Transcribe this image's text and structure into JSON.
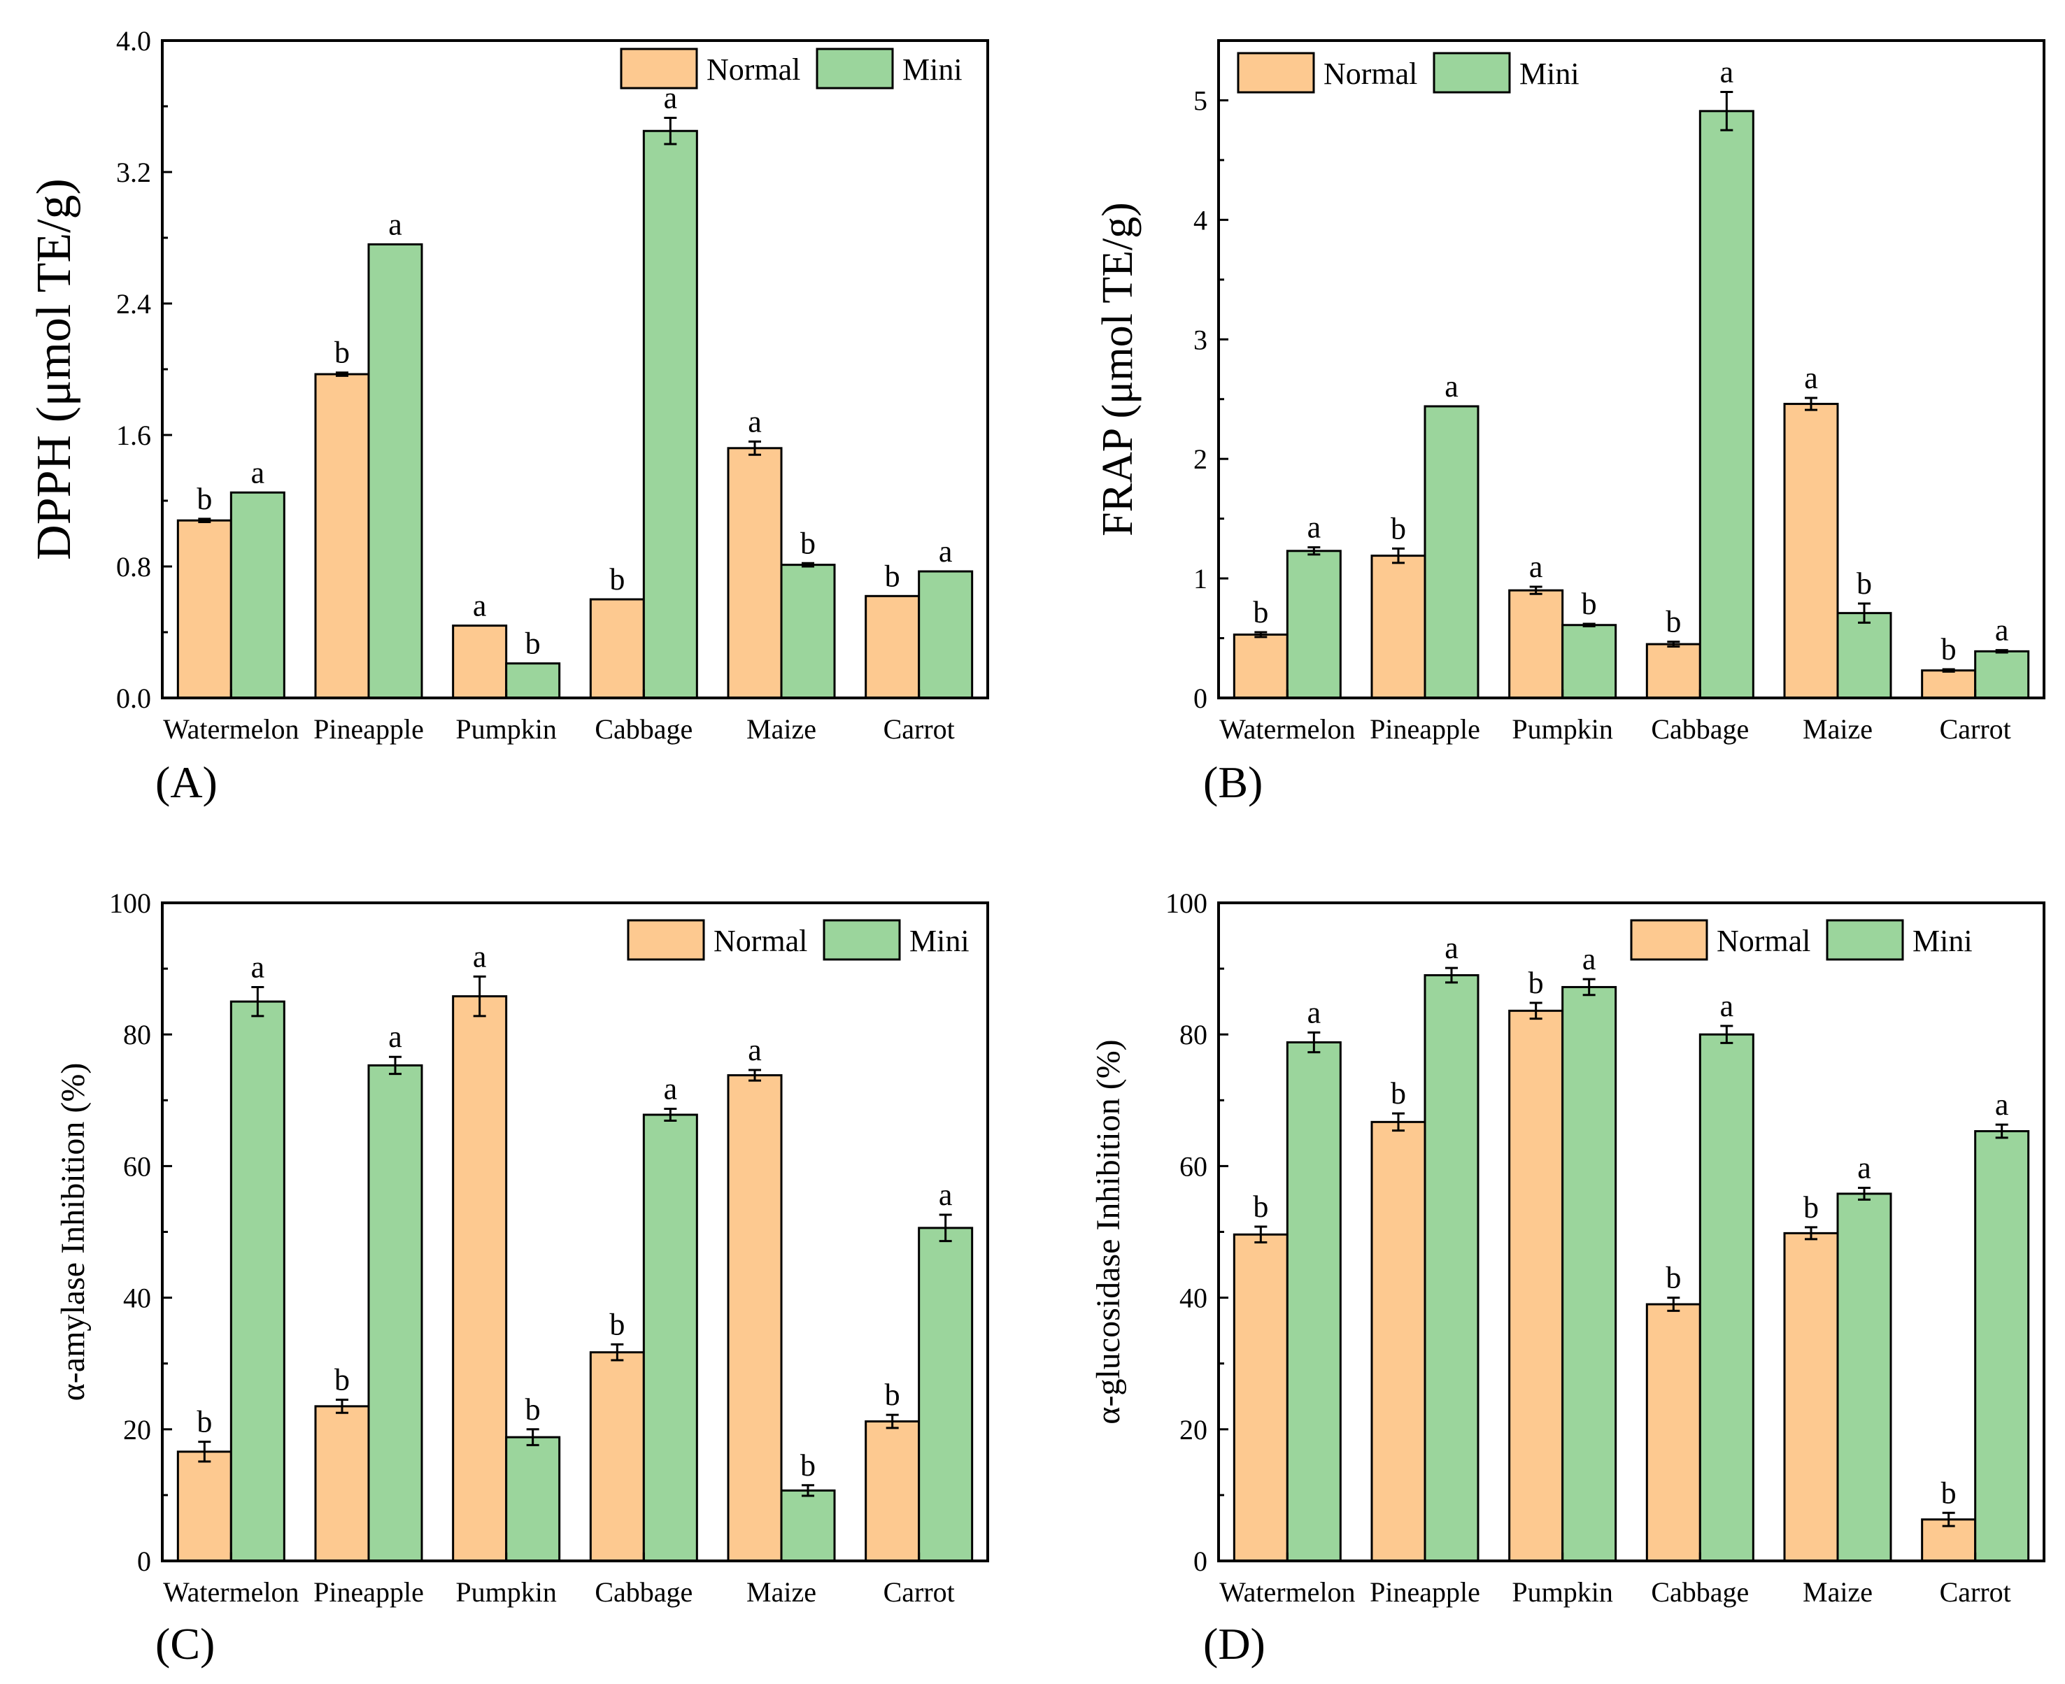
{
  "colors": {
    "normal": "#FDC990",
    "mini": "#9BD59C"
  },
  "chart_data": [
    {
      "id": "A",
      "type": "bar",
      "panel_label": "(A)",
      "title": "",
      "xlabel": "",
      "ylabel": "DPPH (μmol TE/g)",
      "ylim": [
        0,
        4.0
      ],
      "yticks": [
        0.0,
        0.8,
        1.6,
        2.4,
        3.2,
        4.0
      ],
      "ytick_labels": [
        "0.0",
        "0.8",
        "1.6",
        "2.4",
        "3.2",
        "4.0"
      ],
      "categories": [
        "Watermelon",
        "Pineapple",
        "Pumpkin",
        "Cabbage",
        "Maize",
        "Carrot"
      ],
      "legend": [
        "Normal",
        "Mini"
      ],
      "series": [
        {
          "name": "Normal",
          "values": [
            1.08,
            1.97,
            0.44,
            0.6,
            1.52,
            0.62
          ],
          "errors": [
            0.01,
            0.01,
            0.0,
            0.0,
            0.04,
            0.0
          ],
          "letters": [
            "b",
            "b",
            "a",
            "b",
            "a",
            "b"
          ]
        },
        {
          "name": "Mini",
          "values": [
            1.25,
            2.76,
            0.21,
            3.45,
            0.81,
            0.77
          ],
          "errors": [
            0.0,
            0.0,
            0.0,
            0.08,
            0.01,
            0.0
          ],
          "letters": [
            "a",
            "a",
            "b",
            "a",
            "b",
            "a"
          ]
        }
      ]
    },
    {
      "id": "B",
      "type": "bar",
      "panel_label": "(B)",
      "title": "",
      "xlabel": "",
      "ylabel": "FRAP (μmol TE/g)",
      "ylim": [
        0,
        5.5
      ],
      "yticks": [
        0,
        1,
        2,
        3,
        4,
        5
      ],
      "ytick_labels": [
        "0",
        "1",
        "2",
        "3",
        "4",
        "5"
      ],
      "categories": [
        "Watermelon",
        "Pineapple",
        "Pumpkin",
        "Cabbage",
        "Maize",
        "Carrot"
      ],
      "legend": [
        "Normal",
        "Mini"
      ],
      "series": [
        {
          "name": "Normal",
          "values": [
            0.53,
            1.19,
            0.9,
            0.45,
            2.46,
            0.23
          ],
          "errors": [
            0.02,
            0.06,
            0.03,
            0.02,
            0.05,
            0.01
          ],
          "letters": [
            "b",
            "b",
            "a",
            "b",
            "a",
            "b"
          ]
        },
        {
          "name": "Mini",
          "values": [
            1.23,
            2.44,
            0.61,
            4.91,
            0.71,
            0.39
          ],
          "errors": [
            0.03,
            0.0,
            0.01,
            0.16,
            0.08,
            0.01
          ],
          "letters": [
            "a",
            "a",
            "b",
            "a",
            "b",
            "a"
          ]
        }
      ]
    },
    {
      "id": "C",
      "type": "bar",
      "panel_label": "(C)",
      "title": "",
      "xlabel": "",
      "ylabel": "α-amylase Inhibition (%)",
      "ylim": [
        0,
        100
      ],
      "yticks": [
        0,
        20,
        40,
        60,
        80,
        100
      ],
      "ytick_labels": [
        "0",
        "20",
        "40",
        "60",
        "80",
        "100"
      ],
      "categories": [
        "Watermelon",
        "Pineapple",
        "Pumpkin",
        "Cabbage",
        "Maize",
        "Carrot"
      ],
      "legend": [
        "Normal",
        "Mini"
      ],
      "series": [
        {
          "name": "Normal",
          "values": [
            16.6,
            23.5,
            85.8,
            31.7,
            73.8,
            21.2
          ],
          "errors": [
            1.5,
            1.0,
            3.0,
            1.2,
            0.8,
            1.0
          ],
          "letters": [
            "b",
            "b",
            "a",
            "b",
            "a",
            "b"
          ]
        },
        {
          "name": "Mini",
          "values": [
            85.0,
            75.3,
            18.8,
            67.8,
            10.7,
            50.6
          ],
          "errors": [
            2.2,
            1.3,
            1.2,
            0.9,
            0.8,
            2.0
          ],
          "letters": [
            "a",
            "a",
            "b",
            "a",
            "b",
            "a"
          ]
        }
      ]
    },
    {
      "id": "D",
      "type": "bar",
      "panel_label": "(D)",
      "title": "",
      "xlabel": "",
      "ylabel": "α-glucosidase Inhibition (%)",
      "ylim": [
        0,
        100
      ],
      "yticks": [
        0,
        20,
        40,
        60,
        80,
        100
      ],
      "ytick_labels": [
        "0",
        "20",
        "40",
        "60",
        "80",
        "100"
      ],
      "categories": [
        "Watermelon",
        "Pineapple",
        "Pumpkin",
        "Cabbage",
        "Maize",
        "Carrot"
      ],
      "legend": [
        "Normal",
        "Mini"
      ],
      "series": [
        {
          "name": "Normal",
          "values": [
            49.6,
            66.7,
            83.6,
            39.0,
            49.8,
            6.3
          ],
          "errors": [
            1.2,
            1.3,
            1.2,
            1.0,
            0.9,
            1.0
          ],
          "letters": [
            "b",
            "b",
            "b",
            "b",
            "b",
            "b"
          ]
        },
        {
          "name": "Mini",
          "values": [
            78.8,
            89.0,
            87.2,
            80.0,
            55.8,
            65.3
          ],
          "errors": [
            1.5,
            1.1,
            1.2,
            1.3,
            0.9,
            1.0
          ],
          "letters": [
            "a",
            "a",
            "a",
            "a",
            "a",
            "a"
          ]
        }
      ]
    }
  ]
}
